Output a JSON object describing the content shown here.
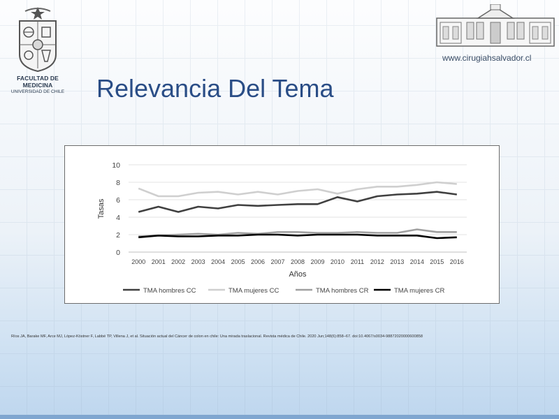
{
  "header": {
    "faculty_line1": "FACULTAD DE MEDICINA",
    "faculty_line2": "UNIVERSIDAD DE CHILE",
    "website": "www.cirugiahsalvador.cl",
    "title": "Relevancia Del Tema"
  },
  "colors": {
    "title": "#2a4d86",
    "series": [
      "#404040",
      "#cfcfcf",
      "#a0a0a0",
      "#000000"
    ]
  },
  "chart_data": {
    "type": "line",
    "xlabel": "Años",
    "ylabel": "Tasas",
    "ylim": [
      0,
      10
    ],
    "yticks": [
      0,
      2,
      4,
      6,
      8,
      10
    ],
    "grid": true,
    "legend_position": "bottom",
    "x": [
      "2000",
      "2001",
      "2002",
      "2003",
      "2004",
      "2005",
      "2006",
      "2007",
      "2008",
      "2009",
      "2010",
      "2011",
      "2012",
      "2013",
      "2014",
      "2015",
      "2016"
    ],
    "series": [
      {
        "name": "TMA hombres CC",
        "values": [
          4.6,
          5.2,
          4.6,
          5.2,
          5.0,
          5.4,
          5.3,
          5.4,
          5.5,
          5.5,
          6.3,
          5.8,
          6.4,
          6.6,
          6.7,
          6.9,
          6.6
        ]
      },
      {
        "name": "TMA mujeres CC",
        "values": [
          7.3,
          6.4,
          6.4,
          6.8,
          6.9,
          6.6,
          6.9,
          6.6,
          7.0,
          7.2,
          6.7,
          7.2,
          7.5,
          7.5,
          7.7,
          8.0,
          7.8
        ]
      },
      {
        "name": "TMA hombres CR",
        "values": [
          1.8,
          1.9,
          2.0,
          2.1,
          2.0,
          2.2,
          2.1,
          2.3,
          2.3,
          2.2,
          2.2,
          2.3,
          2.2,
          2.2,
          2.6,
          2.3,
          2.3
        ]
      },
      {
        "name": "TMA mujeres CR",
        "values": [
          1.7,
          1.9,
          1.8,
          1.8,
          1.9,
          1.9,
          2.0,
          2.0,
          1.9,
          2.0,
          2.0,
          2.0,
          1.9,
          1.9,
          1.9,
          1.6,
          1.7
        ]
      }
    ]
  },
  "citation": "Ríos JA, Barake MF, Arce MJ, López-Köstner F, Labbé TP, Villena J, et al. Situación actual del Cáncer de colon en chile: Una mirada traslacional. Revista médica de Chile. 2020 Jun;148(6):858–67. doi:10.4067/s0034-98872020000600858"
}
